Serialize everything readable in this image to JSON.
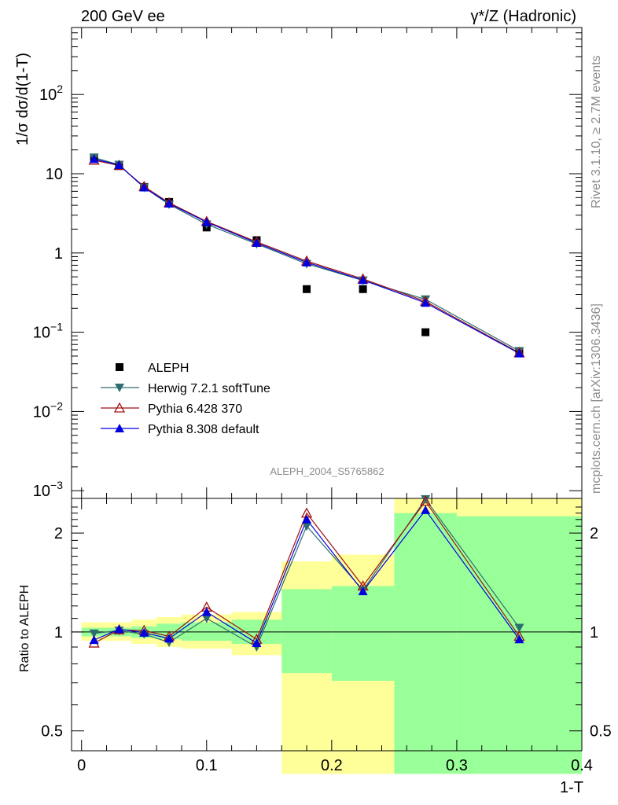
{
  "header": {
    "left": "200 GeV ee",
    "right": "γ*/Z (Hadronic)"
  },
  "side_text": {
    "top": "Rivet 3.1.10, ≥ 2.7M events",
    "bottom": "mcplots.cern.ch [arXiv:1306.3436]"
  },
  "watermark": "ALEPH_2004_S5765862",
  "colors": {
    "aleph": "#000000",
    "herwig": "#2e6e6e",
    "pythia6": "#a01010",
    "pythia8": "#0000e0",
    "band_yellow": "#ffff99",
    "band_green": "#99ff99"
  },
  "chart_data": [
    {
      "type": "line",
      "ylabel": "1/σ  dσ/d(1-T)",
      "yscale": "log",
      "ylim": [
        0.0008,
        700
      ],
      "xlim": [
        -0.008,
        0.4
      ],
      "y_ticks": [
        {
          "value": 0.001,
          "base": "10",
          "exp": "−3"
        },
        {
          "value": 0.01,
          "base": "10",
          "exp": "−2"
        },
        {
          "value": 0.1,
          "base": "10",
          "exp": "−1"
        },
        {
          "value": 1,
          "base": "1",
          "exp": ""
        },
        {
          "value": 10,
          "base": "10",
          "exp": ""
        },
        {
          "value": 100,
          "base": "10",
          "exp": "2"
        }
      ],
      "x": [
        0.01,
        0.03,
        0.05,
        0.07,
        0.1,
        0.14,
        0.18,
        0.225,
        0.275,
        0.35
      ],
      "series": [
        {
          "name": "ALEPH",
          "marker": "square",
          "values": [
            16.0,
            12.5,
            6.8,
            4.4,
            2.1,
            1.45,
            0.35,
            0.35,
            0.1,
            0.057
          ]
        },
        {
          "name": "Herwig 7.2.1 softTune",
          "marker": "triangle-down",
          "values": [
            16.0,
            13.0,
            6.7,
            4.1,
            2.3,
            1.3,
            0.73,
            0.45,
            0.26,
            0.058
          ]
        },
        {
          "name": "Pythia 6.428 370",
          "marker": "triangle-up-open",
          "values": [
            14.8,
            12.7,
            6.9,
            4.3,
            2.5,
            1.38,
            0.79,
            0.47,
            0.245,
            0.055
          ]
        },
        {
          "name": "Pythia 8.308 default",
          "marker": "triangle-up",
          "values": [
            15.3,
            12.9,
            6.7,
            4.2,
            2.45,
            1.34,
            0.76,
            0.455,
            0.235,
            0.054
          ]
        }
      ],
      "legend_position": "lower-left"
    },
    {
      "type": "line",
      "ylabel": "Ratio to ALEPH",
      "xlabel": "1-T",
      "yscale": "log",
      "ylim": [
        0.435,
        2.55
      ],
      "xlim": [
        -0.008,
        0.4
      ],
      "x_ticks": [
        0,
        0.1,
        0.2,
        0.3,
        0.4
      ],
      "x_tick_labels": [
        "0",
        "0.1",
        "0.2",
        "0.3",
        "0.4"
      ],
      "y_ticks": [
        0.5,
        1,
        2
      ],
      "y_tick_labels": [
        "0.5",
        "1",
        "2"
      ],
      "reference_line": 1,
      "bins": [
        {
          "lo": 0.0,
          "hi": 0.02,
          "stat": [
            0.97,
            1.03
          ],
          "total": [
            0.94,
            1.07
          ]
        },
        {
          "lo": 0.02,
          "hi": 0.04,
          "stat": [
            0.97,
            1.03
          ],
          "total": [
            0.94,
            1.07
          ]
        },
        {
          "lo": 0.04,
          "hi": 0.06,
          "stat": [
            0.96,
            1.04
          ],
          "total": [
            0.92,
            1.09
          ]
        },
        {
          "lo": 0.06,
          "hi": 0.08,
          "stat": [
            0.95,
            1.06
          ],
          "total": [
            0.9,
            1.11
          ]
        },
        {
          "lo": 0.08,
          "hi": 0.12,
          "stat": [
            0.94,
            1.07
          ],
          "total": [
            0.89,
            1.13
          ]
        },
        {
          "lo": 0.12,
          "hi": 0.16,
          "stat": [
            0.92,
            1.09
          ],
          "total": [
            0.85,
            1.15
          ]
        },
        {
          "lo": 0.16,
          "hi": 0.2,
          "stat": [
            0.75,
            1.35
          ],
          "total": [
            0.37,
            1.64
          ]
        },
        {
          "lo": 0.2,
          "hi": 0.25,
          "stat": [
            0.71,
            1.38
          ],
          "total": [
            0.37,
            1.72
          ]
        },
        {
          "lo": 0.25,
          "hi": 0.3,
          "stat": [
            0.37,
            2.3
          ],
          "total": [
            0.37,
            2.55
          ]
        },
        {
          "lo": 0.3,
          "hi": 0.4,
          "stat": [
            0.37,
            2.25
          ],
          "total": [
            0.37,
            2.55
          ]
        }
      ],
      "series": [
        {
          "name": "Herwig 7.2.1 softTune",
          "values": [
            0.99,
            1.01,
            0.985,
            0.93,
            1.1,
            0.9,
            2.1,
            1.34,
            2.6,
            1.03
          ]
        },
        {
          "name": "Pythia 6.428 370",
          "values": [
            0.925,
            1.015,
            1.01,
            0.97,
            1.19,
            0.95,
            2.3,
            1.38,
            2.5,
            0.97
          ]
        },
        {
          "name": "Pythia 8.308 default",
          "values": [
            0.945,
            1.02,
            0.995,
            0.955,
            1.15,
            0.925,
            2.2,
            1.33,
            2.35,
            0.95
          ]
        }
      ]
    }
  ]
}
